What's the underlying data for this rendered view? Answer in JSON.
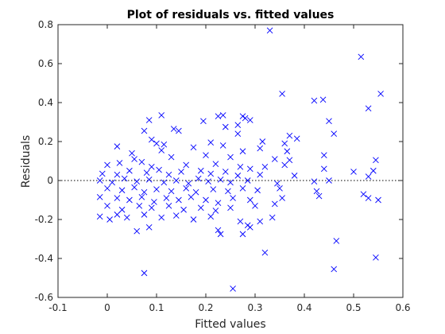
{
  "chart_data": {
    "type": "scatter",
    "title": "Plot of residuals vs. fitted values",
    "xlabel": "Fitted values",
    "ylabel": "Residuals",
    "xlim": [
      -0.1,
      0.6
    ],
    "ylim": [
      -0.6,
      0.8
    ],
    "xticks": [
      "-0.1",
      "0",
      "0.1",
      "0.2",
      "0.3",
      "0.4",
      "0.5",
      "0.6"
    ],
    "yticks": [
      "-0.6",
      "-0.4",
      "-0.2",
      "0",
      "0.2",
      "0.4",
      "0.6",
      "0.8"
    ],
    "grid": false,
    "reference_line": {
      "y": 0,
      "style": "dotted",
      "color": "#000000"
    },
    "marker": {
      "shape": "x",
      "color": "#0000ff"
    },
    "series": [
      {
        "points": [
          [
            0.33,
            0.77
          ],
          [
            0.515,
            0.635
          ],
          [
            0.555,
            0.445
          ],
          [
            0.355,
            0.445
          ],
          [
            0.42,
            0.41
          ],
          [
            0.438,
            0.415
          ],
          [
            0.53,
            0.37
          ],
          [
            0.225,
            0.33
          ],
          [
            0.235,
            0.335
          ],
          [
            0.275,
            0.33
          ],
          [
            0.11,
            0.335
          ],
          [
            0.085,
            0.31
          ],
          [
            0.195,
            0.305
          ],
          [
            0.28,
            0.32
          ],
          [
            0.29,
            0.31
          ],
          [
            0.45,
            0.305
          ],
          [
            0.135,
            0.265
          ],
          [
            0.145,
            0.255
          ],
          [
            0.265,
            0.285
          ],
          [
            0.46,
            0.24
          ],
          [
            0.075,
            0.255
          ],
          [
            0.37,
            0.23
          ],
          [
            0.36,
            0.19
          ],
          [
            0.385,
            0.215
          ],
          [
            0.24,
            0.275
          ],
          [
            0.1,
            0.19
          ],
          [
            0.115,
            0.185
          ],
          [
            0.21,
            0.195
          ],
          [
            0.265,
            0.24
          ],
          [
            0.315,
            0.2
          ],
          [
            0.02,
            0.175
          ],
          [
            0.09,
            0.21
          ],
          [
            0.05,
            0.14
          ],
          [
            0.31,
            0.165
          ],
          [
            0.365,
            0.15
          ],
          [
            0.37,
            0.105
          ],
          [
            0.175,
            0.17
          ],
          [
            0.235,
            0.18
          ],
          [
            0.275,
            0.15
          ],
          [
            0.055,
            0.11
          ],
          [
            0.11,
            0.155
          ],
          [
            0.13,
            0.12
          ],
          [
            0.2,
            0.13
          ],
          [
            0.25,
            0.12
          ],
          [
            0.34,
            0.11
          ],
          [
            0.44,
            0.13
          ],
          [
            0.545,
            0.105
          ],
          [
            0.0,
            0.08
          ],
          [
            0.025,
            0.09
          ],
          [
            0.07,
            0.095
          ],
          [
            0.09,
            0.07
          ],
          [
            0.16,
            0.08
          ],
          [
            0.22,
            0.085
          ],
          [
            0.27,
            0.07
          ],
          [
            0.29,
            0.06
          ],
          [
            0.32,
            0.07
          ],
          [
            0.36,
            0.08
          ],
          [
            0.44,
            0.06
          ],
          [
            0.5,
            0.045
          ],
          [
            0.54,
            0.05
          ],
          [
            -0.01,
            0.035
          ],
          [
            0.02,
            0.03
          ],
          [
            0.045,
            0.05
          ],
          [
            0.08,
            0.04
          ],
          [
            0.105,
            0.055
          ],
          [
            0.125,
            0.03
          ],
          [
            0.15,
            0.045
          ],
          [
            0.19,
            0.05
          ],
          [
            0.21,
            0.035
          ],
          [
            0.24,
            0.045
          ],
          [
            0.265,
            0.025
          ],
          [
            0.31,
            0.03
          ],
          [
            0.38,
            0.025
          ],
          [
            0.53,
            0.02
          ],
          [
            -0.015,
            0.0
          ],
          [
            0.01,
            -0.01
          ],
          [
            0.035,
            0.01
          ],
          [
            0.06,
            -0.005
          ],
          [
            0.085,
            0.005
          ],
          [
            0.115,
            -0.01
          ],
          [
            0.14,
            0.0
          ],
          [
            0.165,
            -0.015
          ],
          [
            0.185,
            0.01
          ],
          [
            0.205,
            -0.005
          ],
          [
            0.23,
            0.005
          ],
          [
            0.25,
            -0.01
          ],
          [
            0.285,
            0.0
          ],
          [
            0.345,
            -0.015
          ],
          [
            0.42,
            -0.005
          ],
          [
            0.45,
            0.0
          ],
          [
            0.0,
            -0.04
          ],
          [
            0.03,
            -0.05
          ],
          [
            0.055,
            -0.035
          ],
          [
            0.075,
            -0.06
          ],
          [
            0.1,
            -0.045
          ],
          [
            0.13,
            -0.055
          ],
          [
            0.16,
            -0.04
          ],
          [
            0.18,
            -0.06
          ],
          [
            0.215,
            -0.045
          ],
          [
            0.245,
            -0.055
          ],
          [
            0.275,
            -0.04
          ],
          [
            0.305,
            -0.05
          ],
          [
            0.35,
            -0.04
          ],
          [
            0.425,
            -0.055
          ],
          [
            0.52,
            -0.07
          ],
          [
            -0.015,
            -0.085
          ],
          [
            0.02,
            -0.09
          ],
          [
            0.045,
            -0.1
          ],
          [
            0.07,
            -0.085
          ],
          [
            0.095,
            -0.11
          ],
          [
            0.12,
            -0.09
          ],
          [
            0.145,
            -0.1
          ],
          [
            0.17,
            -0.085
          ],
          [
            0.2,
            -0.1
          ],
          [
            0.225,
            -0.115
          ],
          [
            0.255,
            -0.09
          ],
          [
            0.29,
            -0.1
          ],
          [
            0.355,
            -0.09
          ],
          [
            0.43,
            -0.08
          ],
          [
            0.53,
            -0.09
          ],
          [
            0.55,
            -0.1
          ],
          [
            0.0,
            -0.13
          ],
          [
            0.03,
            -0.15
          ],
          [
            0.065,
            -0.13
          ],
          [
            0.09,
            -0.14
          ],
          [
            0.125,
            -0.13
          ],
          [
            0.155,
            -0.15
          ],
          [
            0.19,
            -0.14
          ],
          [
            0.22,
            -0.155
          ],
          [
            0.25,
            -0.14
          ],
          [
            0.3,
            -0.13
          ],
          [
            0.34,
            -0.12
          ],
          [
            -0.015,
            -0.185
          ],
          [
            0.005,
            -0.2
          ],
          [
            0.04,
            -0.19
          ],
          [
            0.075,
            -0.175
          ],
          [
            0.11,
            -0.19
          ],
          [
            0.14,
            -0.18
          ],
          [
            0.175,
            -0.2
          ],
          [
            0.21,
            -0.185
          ],
          [
            0.27,
            -0.21
          ],
          [
            0.335,
            -0.19
          ],
          [
            0.31,
            -0.21
          ],
          [
            0.02,
            -0.175
          ],
          [
            0.06,
            -0.26
          ],
          [
            0.085,
            -0.24
          ],
          [
            0.225,
            -0.255
          ],
          [
            0.23,
            -0.275
          ],
          [
            0.275,
            -0.275
          ],
          [
            0.285,
            -0.23
          ],
          [
            0.29,
            -0.24
          ],
          [
            0.465,
            -0.31
          ],
          [
            0.32,
            -0.37
          ],
          [
            0.545,
            -0.395
          ],
          [
            0.46,
            -0.455
          ],
          [
            0.075,
            -0.475
          ],
          [
            0.255,
            -0.555
          ]
        ]
      }
    ]
  }
}
